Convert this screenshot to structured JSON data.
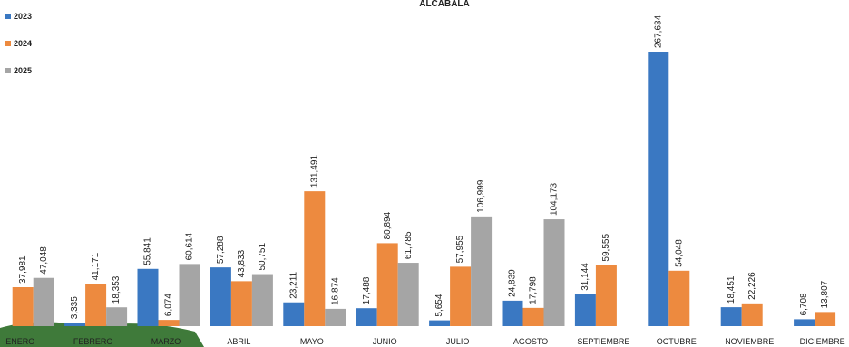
{
  "chart_data": {
    "type": "bar",
    "title": "ALCABALA",
    "categories": [
      "ENERO",
      "FEBRERO",
      "MARZO",
      "ABRIL",
      "MAYO",
      "JUNIO",
      "JULIO",
      "AGOSTO",
      "SEPTIEMBRE",
      "OCTUBRE",
      "NOVIEMBRE",
      "DICIEMBRE"
    ],
    "series": [
      {
        "name": "2023",
        "color": "#3a78c2",
        "values": [
          null,
          3335,
          55841,
          57288,
          23211,
          17488,
          5654,
          24839,
          31144,
          267634,
          18451,
          6708
        ],
        "value_labels": [
          null,
          "3,335",
          "55,841",
          "57,288",
          "23,211",
          "17,488",
          "5,654",
          "24,839",
          "31,144",
          "267,634",
          "18,451",
          "6,708"
        ]
      },
      {
        "name": "2024",
        "color": "#ed8a3f",
        "values": [
          37981,
          41171,
          6074,
          43833,
          131491,
          80894,
          57955,
          17798,
          59555,
          54048,
          22226,
          13807
        ],
        "value_labels": [
          "37,981",
          "41,171",
          "6,074",
          "43,833",
          "131,491",
          "80,894",
          "57,955",
          "17,798",
          "59,555",
          "54,048",
          "22,226",
          "13,807"
        ]
      },
      {
        "name": "2025",
        "color": "#a5a5a5",
        "values": [
          47048,
          18353,
          60614,
          50751,
          16874,
          61785,
          106999,
          104173,
          null,
          null,
          null,
          null
        ],
        "value_labels": [
          "47,048",
          "18,353",
          "60,614",
          "50,751",
          "16,874",
          "61,785",
          "106,999",
          "104,173",
          null,
          null,
          null,
          null
        ]
      }
    ]
  }
}
